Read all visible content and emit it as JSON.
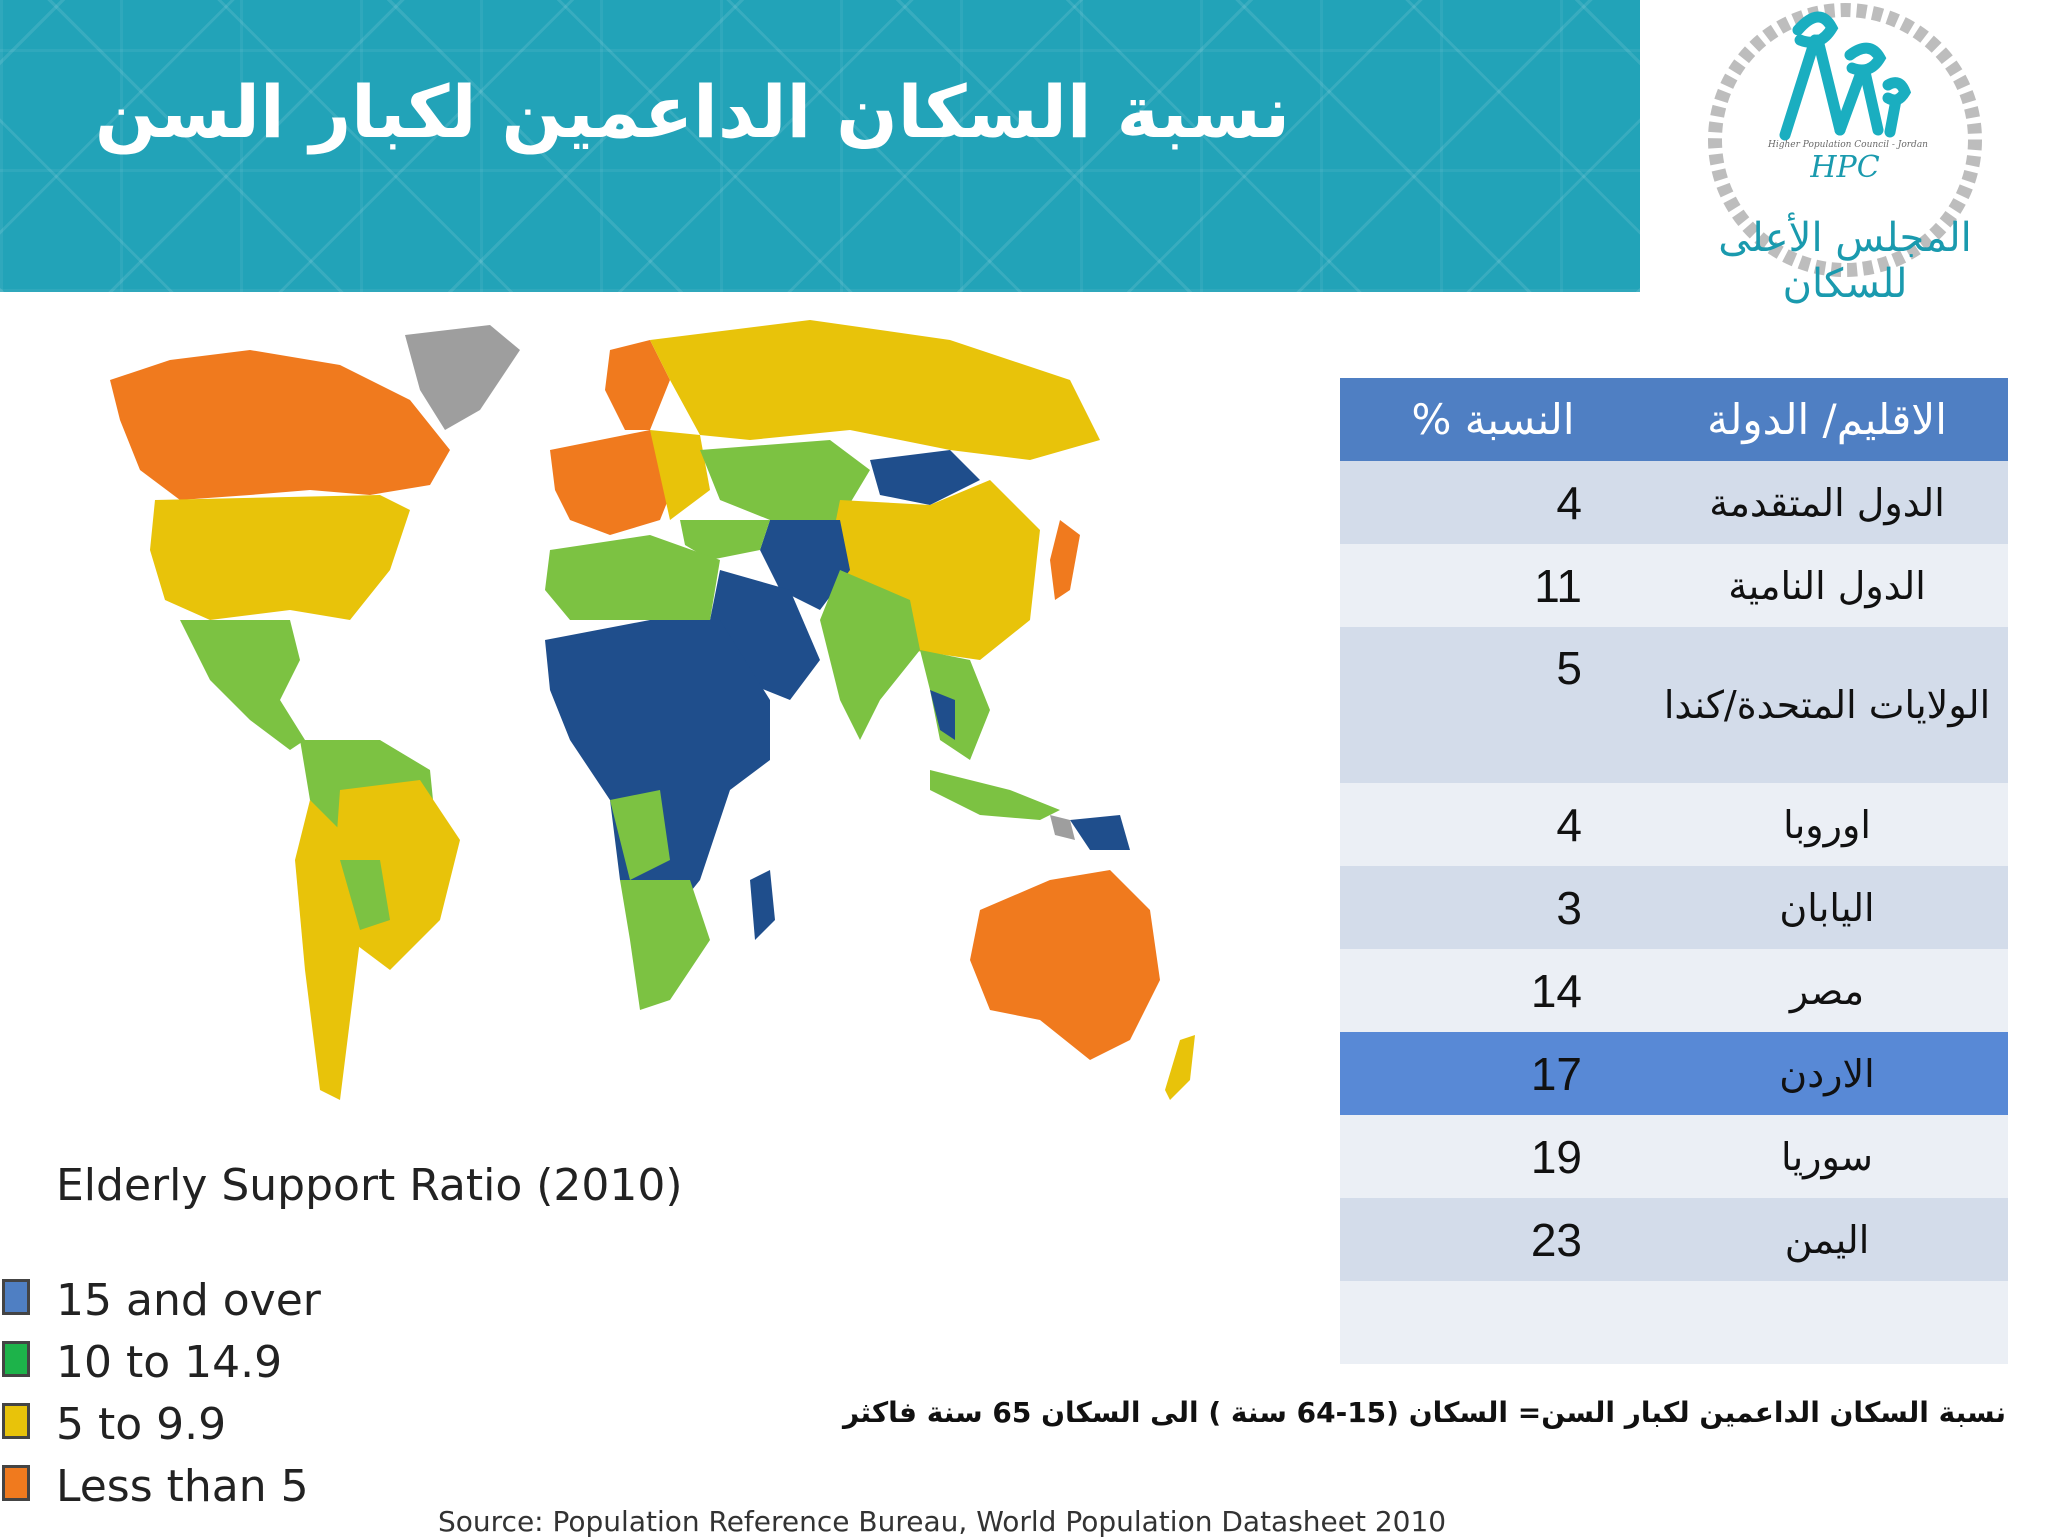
{
  "header": {
    "title": "نسبة السكان الداعمين لكبار السن"
  },
  "logo": {
    "initials": "HPC",
    "subtitle": "Higher Population Council - Jordan",
    "arabic_name": "المجلس الأعلى للسكان"
  },
  "map": {
    "caption": "Elderly Support Ratio (2010)",
    "icon": "world-map-icon"
  },
  "legend": [
    {
      "label": "15 and over",
      "color": "#1f4e8c"
    },
    {
      "label": "10 to 14.9",
      "color": "#7cc242"
    },
    {
      "label": "5 to 9.9",
      "color": "#e8c30a"
    },
    {
      "label": "Less than 5",
      "color": "#f07a1e"
    }
  ],
  "table": {
    "headers": {
      "region": "الاقليم/ الدولة",
      "ratio": "النسبة %"
    },
    "rows": [
      {
        "region": "الدول المتقدمة",
        "value": "4"
      },
      {
        "region": "الدول النامية",
        "value": "11"
      },
      {
        "region": "الولايات المتحدة/كندا",
        "value": "5"
      },
      {
        "region": "اوروبا",
        "value": "4"
      },
      {
        "region": "اليابان",
        "value": "3"
      },
      {
        "region": "مصر",
        "value": "14"
      },
      {
        "region": "الاردن",
        "value": "17"
      },
      {
        "region": "سوريا",
        "value": "19"
      },
      {
        "region": "اليمن",
        "value": "23"
      }
    ]
  },
  "formula": "نسبة السكان الداعمين لكبار السن= السكان (15-64 سنة ) الى السكان 65 سنة فاكثر",
  "source": "Source: Population Reference Bureau, World Population Datasheet 2010"
}
